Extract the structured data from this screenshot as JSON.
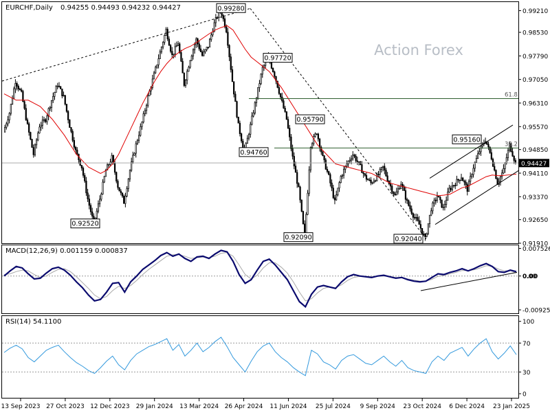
{
  "header": {
    "symbol": "EURCHF,Daily",
    "ohlc": "0.94255 0.94493 0.94232 0.94427"
  },
  "watermark": "Action Forex",
  "chart_data": [
    {
      "type": "candlestick",
      "title": "EURCHF,Daily",
      "ylim": [
        0.9191,
        0.9948
      ],
      "y_ticks": [
        "0.99210",
        "0.98530",
        "0.97790",
        "0.97050",
        "0.96310",
        "0.95570",
        "0.94850",
        "0.94110",
        "0.93370",
        "0.92650",
        "0.91910"
      ],
      "current_price": "0.94427",
      "x_labels": [
        "13 Sep 2023",
        "27 Oct 2023",
        "12 Dec 2023",
        "29 Jan 2024",
        "13 Mar 2024",
        "26 Apr 2024",
        "11 Jun 2024",
        "25 Jul 2024",
        "9 Sep 2024",
        "23 Oct 2024",
        "6 Dec 2024",
        "23 Jan 2025"
      ],
      "close_series": [
        0.954,
        0.96,
        0.97,
        0.966,
        0.956,
        0.947,
        0.956,
        0.958,
        0.964,
        0.969,
        0.965,
        0.956,
        0.948,
        0.943,
        0.933,
        0.9252,
        0.933,
        0.942,
        0.946,
        0.937,
        0.932,
        0.942,
        0.95,
        0.957,
        0.965,
        0.972,
        0.979,
        0.986,
        0.978,
        0.982,
        0.969,
        0.977,
        0.983,
        0.978,
        0.981,
        0.988,
        0.9928,
        0.986,
        0.97,
        0.956,
        0.9476,
        0.956,
        0.965,
        0.974,
        0.9772,
        0.972,
        0.965,
        0.958,
        0.946,
        0.936,
        0.9209,
        0.95,
        0.954,
        0.946,
        0.94,
        0.932,
        0.94,
        0.944,
        0.947,
        0.944,
        0.94,
        0.938,
        0.94,
        0.943,
        0.938,
        0.934,
        0.938,
        0.932,
        0.928,
        0.925,
        0.9204,
        0.93,
        0.934,
        0.93,
        0.936,
        0.938,
        0.94,
        0.936,
        0.943,
        0.948,
        0.9516,
        0.946,
        0.938,
        0.942,
        0.95,
        0.94427
      ],
      "moving_average": [
        0.966,
        0.965,
        0.964,
        0.964,
        0.964,
        0.963,
        0.962,
        0.96,
        0.958,
        0.9555,
        0.953,
        0.95,
        0.947,
        0.945,
        0.943,
        0.942,
        0.941,
        0.942,
        0.944,
        0.947,
        0.951,
        0.955,
        0.959,
        0.963,
        0.9665,
        0.97,
        0.973,
        0.9755,
        0.9775,
        0.979,
        0.9802,
        0.981,
        0.9822,
        0.9835,
        0.9848,
        0.986,
        0.9868,
        0.9874,
        0.986,
        0.983,
        0.98,
        0.9775,
        0.976,
        0.9745,
        0.973,
        0.9705,
        0.968,
        0.965,
        0.962,
        0.959,
        0.956,
        0.953,
        0.95,
        0.948,
        0.946,
        0.944,
        0.9435,
        0.943,
        0.9425,
        0.942,
        0.9415,
        0.941,
        0.94,
        0.939,
        0.938,
        0.9375,
        0.937,
        0.9365,
        0.936,
        0.9355,
        0.935,
        0.9345,
        0.934,
        0.9342,
        0.9345,
        0.9355,
        0.9365,
        0.937,
        0.938,
        0.939,
        0.94,
        0.9405,
        0.9403,
        0.9404,
        0.9406,
        0.9408
      ],
      "price_labels": [
        "0.99280",
        "0.97720",
        "0.95790",
        "0.95160",
        "0.94760",
        "0.92520",
        "0.92090",
        "0.92040"
      ],
      "fib_labels": [
        "61.8",
        "38.2"
      ],
      "fib_levels": [
        0.9645,
        0.949
      ]
    },
    {
      "type": "line",
      "title": "MACD(12,26,9) 0.001159 0.000837",
      "ylim": [
        -0.01,
        0.0082
      ],
      "y_ticks": [
        "0.007526",
        "0.00",
        "-0.009252"
      ],
      "macd_value": "0.00",
      "macd": [
        0.0,
        0.0014,
        0.0026,
        0.0022,
        0.0006,
        -0.0008,
        -0.0006,
        0.0008,
        0.002,
        0.0024,
        0.0016,
        0.0002,
        -0.0016,
        -0.0032,
        -0.0052,
        -0.0068,
        -0.0064,
        -0.0044,
        -0.002,
        -0.0018,
        -0.0044,
        -0.0016,
        0.0,
        0.0018,
        0.003,
        0.0042,
        0.0056,
        0.0064,
        0.0054,
        0.006,
        0.0048,
        0.004,
        0.0052,
        0.0054,
        0.0048,
        0.006,
        0.007,
        0.0066,
        0.004,
        0.0004,
        -0.002,
        -0.001,
        0.0016,
        0.004,
        0.0046,
        0.003,
        0.001,
        -0.001,
        -0.004,
        -0.007,
        -0.0084,
        -0.005,
        -0.003,
        -0.0026,
        -0.003,
        -0.0034,
        -0.0016,
        -0.0002,
        0.0004,
        0.0,
        -0.0002,
        -0.0004,
        0.0,
        0.0002,
        -0.0002,
        -0.0006,
        -0.0004,
        -0.001,
        -0.0014,
        -0.0016,
        -0.0014,
        -0.0004,
        0.0006,
        0.0004,
        0.001,
        0.0014,
        0.002,
        0.0014,
        0.002,
        0.0028,
        0.0034,
        0.0026,
        0.0012,
        0.001,
        0.0016,
        0.0012
      ],
      "signal": [
        0.0004,
        0.0006,
        0.0012,
        0.0016,
        0.0014,
        0.0004,
        -0.0004,
        0.0,
        0.001,
        0.0018,
        0.002,
        0.0012,
        -0.0002,
        -0.0018,
        -0.0034,
        -0.0052,
        -0.0062,
        -0.0056,
        -0.004,
        -0.0028,
        -0.0034,
        -0.0026,
        -0.0012,
        0.0004,
        0.0018,
        0.003,
        0.0042,
        0.0054,
        0.0058,
        0.0058,
        0.0054,
        0.0048,
        0.005,
        0.0052,
        0.005,
        0.0054,
        0.0062,
        0.0064,
        0.0054,
        0.003,
        0.0004,
        -0.0008,
        0.0002,
        0.0022,
        0.0036,
        0.0036,
        0.0024,
        0.0008,
        -0.0016,
        -0.0044,
        -0.0068,
        -0.0062,
        -0.0046,
        -0.0034,
        -0.003,
        -0.0032,
        -0.0024,
        -0.0012,
        -0.0004,
        -0.0001,
        -0.0001,
        -0.0002,
        -0.0001,
        0.0,
        -0.0001,
        -0.0004,
        -0.0004,
        -0.0008,
        -0.0011,
        -0.0014,
        -0.0014,
        -0.0009,
        -0.0001,
        0.0002,
        0.0006,
        0.001,
        0.0015,
        0.0015,
        0.0017,
        0.0022,
        0.0028,
        0.0027,
        0.0019,
        0.0014,
        0.0015,
        0.0008
      ]
    },
    {
      "type": "line",
      "title": "RSI(14) 54.1100",
      "ylim": [
        0,
        100
      ],
      "y_ticks": [
        "100",
        "70",
        "30",
        "0"
      ],
      "levels": [
        70,
        30
      ],
      "rsi": [
        57,
        63,
        67,
        62,
        50,
        44,
        52,
        60,
        64,
        67,
        58,
        50,
        43,
        38,
        32,
        28,
        36,
        45,
        52,
        40,
        33,
        46,
        55,
        60,
        65,
        68,
        72,
        76,
        60,
        68,
        52,
        60,
        70,
        58,
        64,
        72,
        78,
        65,
        50,
        40,
        30,
        45,
        58,
        66,
        70,
        58,
        50,
        44,
        36,
        30,
        25,
        60,
        55,
        44,
        40,
        34,
        46,
        52,
        54,
        48,
        42,
        40,
        46,
        52,
        44,
        38,
        46,
        36,
        32,
        30,
        28,
        44,
        52,
        46,
        56,
        60,
        64,
        52,
        62,
        70,
        76,
        58,
        48,
        56,
        66,
        54
      ]
    }
  ]
}
